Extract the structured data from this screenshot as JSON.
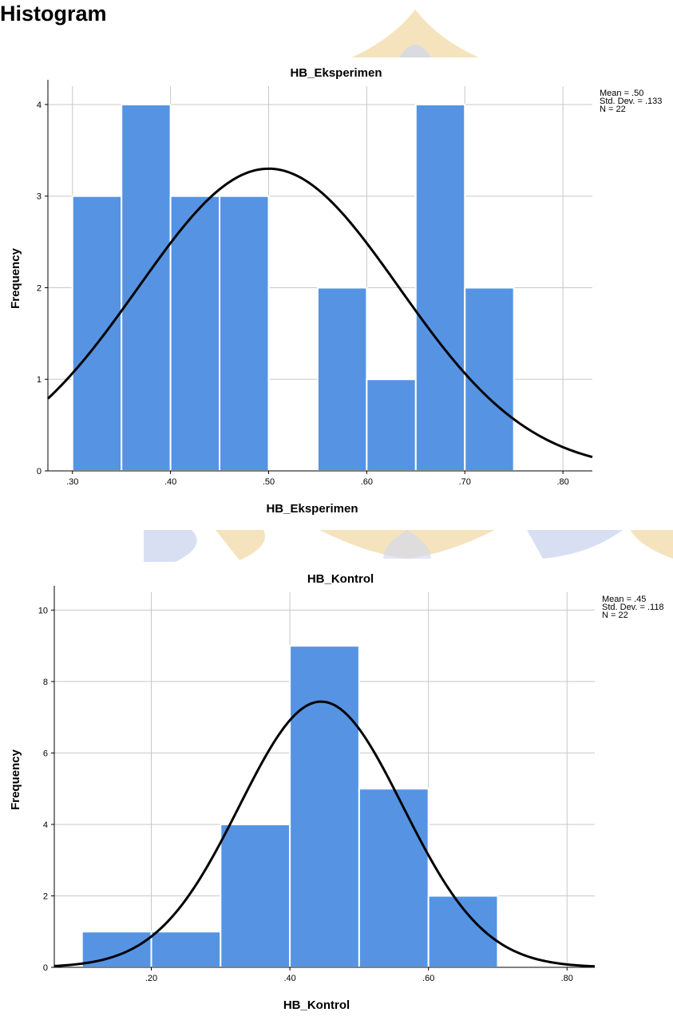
{
  "page": {
    "heading": "Histogram"
  },
  "colors": {
    "bar_fill": "#5694e3",
    "bar_stroke": "#ffffff",
    "curve": "#000000",
    "grid": "#c8c8c8",
    "axis": "#000000",
    "seal": "#f2d9a8",
    "seal_blue": "#c9d3ee"
  },
  "chart_data": [
    {
      "type": "bar",
      "title": "HB_Eksperimen",
      "xlabel": "HB_Eksperimen",
      "ylabel": "Frequency",
      "xlim": [
        0.275,
        0.83
      ],
      "ylim": [
        0,
        4.2
      ],
      "xticks": [
        0.3,
        0.4,
        0.5,
        0.6,
        0.7,
        0.8
      ],
      "xtick_labels": [
        ".30",
        ".40",
        ".50",
        ".60",
        ".70",
        ".80"
      ],
      "yticks": [
        0,
        1,
        2,
        3,
        4
      ],
      "ytick_labels": [
        "0",
        "1",
        "2",
        "3",
        "4"
      ],
      "bins": [
        {
          "x0": 0.3,
          "x1": 0.35,
          "count": 3
        },
        {
          "x0": 0.35,
          "x1": 0.4,
          "count": 4
        },
        {
          "x0": 0.4,
          "x1": 0.45,
          "count": 3
        },
        {
          "x0": 0.45,
          "x1": 0.5,
          "count": 3
        },
        {
          "x0": 0.55,
          "x1": 0.6,
          "count": 2
        },
        {
          "x0": 0.6,
          "x1": 0.65,
          "count": 1
        },
        {
          "x0": 0.65,
          "x1": 0.7,
          "count": 4
        },
        {
          "x0": 0.7,
          "x1": 0.75,
          "count": 2
        }
      ],
      "normal_curve": {
        "mean": 0.5,
        "sd": 0.133,
        "n": 22,
        "bin_width": 0.05
      },
      "stats": [
        "Mean = .50",
        "Std. Dev. = .133",
        "N = 22"
      ],
      "grid": true
    },
    {
      "type": "bar",
      "title": "HB_Kontrol",
      "xlabel": "HB_Kontrol",
      "ylabel": "Frequency",
      "xlim": [
        0.06,
        0.84
      ],
      "ylim": [
        0,
        10.5
      ],
      "xticks": [
        0.2,
        0.4,
        0.6,
        0.8
      ],
      "xtick_labels": [
        ".20",
        ".40",
        ".60",
        ".80"
      ],
      "yticks": [
        0,
        2,
        4,
        6,
        8,
        10
      ],
      "ytick_labels": [
        "0",
        "2",
        "4",
        "6",
        "8",
        "10"
      ],
      "bins": [
        {
          "x0": 0.1,
          "x1": 0.2,
          "count": 1
        },
        {
          "x0": 0.2,
          "x1": 0.3,
          "count": 1
        },
        {
          "x0": 0.3,
          "x1": 0.4,
          "count": 4
        },
        {
          "x0": 0.4,
          "x1": 0.5,
          "count": 9
        },
        {
          "x0": 0.5,
          "x1": 0.6,
          "count": 5
        },
        {
          "x0": 0.6,
          "x1": 0.7,
          "count": 2
        }
      ],
      "normal_curve": {
        "mean": 0.445,
        "sd": 0.118,
        "n": 22,
        "bin_width": 0.1
      },
      "stats": [
        "Mean = .45",
        "Std. Dev. = .118",
        "N = 22"
      ],
      "grid": true
    }
  ]
}
